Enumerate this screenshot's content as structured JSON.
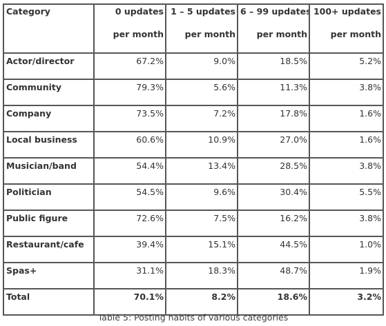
{
  "table": {
    "headers": [
      {
        "line1": "Category",
        "line2": ""
      },
      {
        "line1": "0 updates",
        "line2": "per month"
      },
      {
        "line1": "1 – 5 updates",
        "line2": "per month"
      },
      {
        "line1": "6 – 99 updates",
        "line2": "per month"
      },
      {
        "line1": "100+ updates",
        "line2": "per month"
      }
    ],
    "rows": [
      {
        "category": "Actor/director",
        "cells": [
          "67.2%",
          "9.0%",
          "18.5%",
          "5.2%"
        ]
      },
      {
        "category": "Community",
        "cells": [
          "79.3%",
          "5.6%",
          "11.3%",
          "3.8%"
        ]
      },
      {
        "category": "Company",
        "cells": [
          "73.5%",
          "7.2%",
          "17.8%",
          "1.6%"
        ]
      },
      {
        "category": "Local business",
        "cells": [
          "60.6%",
          "10.9%",
          "27.0%",
          "1.6%"
        ]
      },
      {
        "category": "Musician/band",
        "cells": [
          "54.4%",
          "13.4%",
          "28.5%",
          "3.8%"
        ]
      },
      {
        "category": "Politician",
        "cells": [
          "54.5%",
          "9.6%",
          "30.4%",
          "5.5%"
        ]
      },
      {
        "category": "Public figure",
        "cells": [
          "72.6%",
          "7.5%",
          "16.2%",
          "3.8%"
        ]
      },
      {
        "category": "Restaurant/cafe",
        "cells": [
          "39.4%",
          "15.1%",
          "44.5%",
          "1.0%"
        ]
      },
      {
        "category": "Spas+",
        "cells": [
          "31.1%",
          "18.3%",
          "48.7%",
          "1.9%"
        ]
      }
    ],
    "total": {
      "category": "Total",
      "cells": [
        "70.1%",
        "8.2%",
        "18.6%",
        "3.2%"
      ]
    }
  },
  "caption": "Table 5: Posting habits of various categories"
}
